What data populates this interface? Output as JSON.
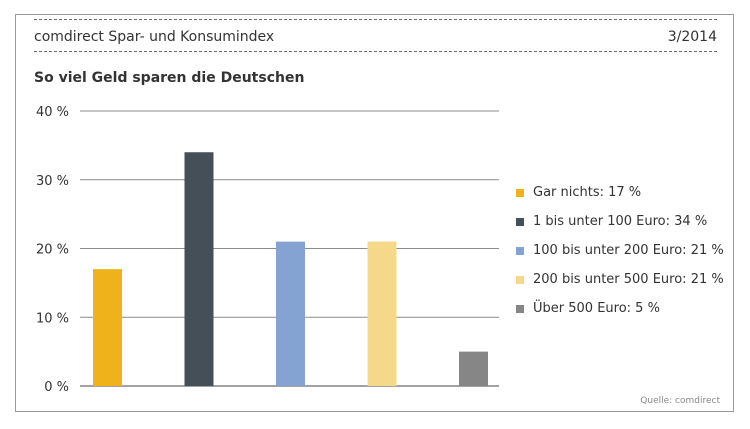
{
  "header": {
    "title": "comdirect Spar- und Konsumindex",
    "date": "3/2014"
  },
  "source": "Quelle: comdirect",
  "chart_data": {
    "type": "bar",
    "title": "So viel Geld sparen die Deutschen",
    "categories": [
      "Gar nichts",
      "1 bis unter 100 Euro",
      "100 bis unter 200 Euro",
      "200 bis unter 500 Euro",
      "Über 500 Euro"
    ],
    "values": [
      17,
      34,
      21,
      21,
      5
    ],
    "colors": [
      "#efb21a",
      "#444f57",
      "#84a2d2",
      "#f6d88a",
      "#868686"
    ],
    "legend": [
      "Gar nichts: 17 %",
      "1 bis unter 100 Euro: 34 %",
      "100 bis unter 200 Euro: 21 %",
      "200 bis unter 500 Euro: 21 %",
      "Über 500 Euro: 5 %"
    ],
    "yticks": [
      "0 %",
      "10 %",
      "20 %",
      "30 %",
      "40 %"
    ],
    "ylim": [
      0,
      40
    ],
    "grid": true,
    "legend_position": "right"
  }
}
